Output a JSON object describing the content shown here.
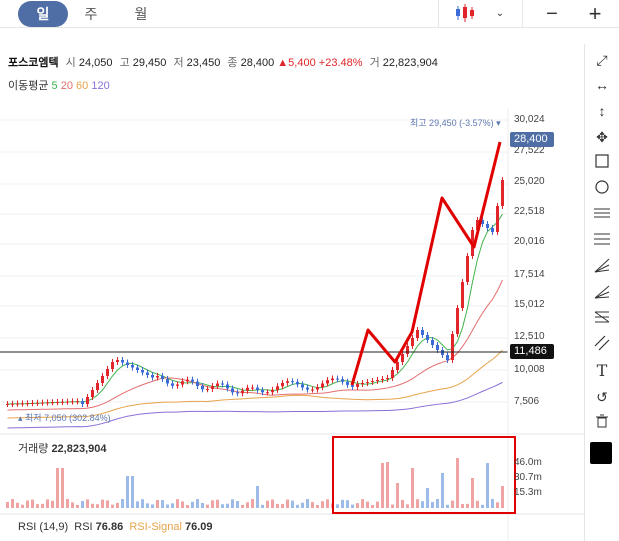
{
  "tabs": [
    {
      "label": "일"
    },
    {
      "label": "주"
    },
    {
      "label": "월"
    }
  ],
  "header": {
    "name": "포스코엠텍",
    "open_label": "시",
    "open": "24,050",
    "high_label": "고",
    "high": "29,450",
    "low_label": "저",
    "low": "23,450",
    "close_label": "종",
    "close": "28,400",
    "change": "▲5,400",
    "change_pct": "+23.48%",
    "volume_label": "거",
    "volume": "22,823,904"
  },
  "ma": {
    "label": "이동평균",
    "p5": "5",
    "p20": "20",
    "p60": "60",
    "p120": "120"
  },
  "price_axis": [
    "30,024",
    "27,522",
    "25,020",
    "22,518",
    "20,016",
    "17,514",
    "15,012",
    "12,510",
    "10,008",
    "7,506"
  ],
  "current_price": "28,400",
  "crosshair_price": "11,486",
  "high_marker": "최고 29,450 (-3.57%)",
  "low_marker": "최저 7,050 (302.84%)",
  "volume": {
    "title": "거래량",
    "value": "22,823,904",
    "axis": [
      "46.0m",
      "30.7m",
      "15.3m"
    ]
  },
  "rsi": {
    "label": "RSI (14,9)",
    "rsi_label": "RSI",
    "rsi_value": "76.86",
    "signal_label": "RSI-Signal",
    "signal_value": "76.09"
  },
  "colors": {
    "accent": "#4e6ea5",
    "up": "#e0262b",
    "down": "#3d6bd6",
    "ma5": "#40b34a",
    "ma20": "#e36d6d",
    "ma60": "#e6a34a",
    "ma120": "#8b6fd8",
    "annotation": "#e00000"
  },
  "sidebar_icons": [
    "diagonal-arrows-icon",
    "horizontal-arrows-icon",
    "vertical-arrows-icon",
    "move-icon",
    "rectangle-icon",
    "circle-icon",
    "fibonacci-retracement-icon",
    "fibonacci-extension-icon",
    "speed-fan-icon",
    "fibonacci-fan-icon",
    "gann-fan-icon",
    "parallel-lines-icon",
    "text-icon",
    "undo-icon",
    "trash-icon",
    "color-swatch-icon"
  ]
}
